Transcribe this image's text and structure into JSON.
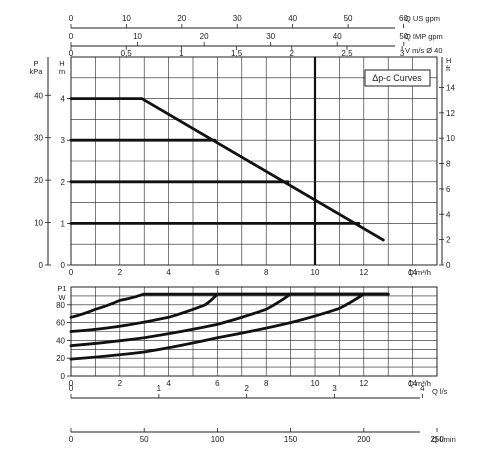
{
  "chart_data": [
    {
      "type": "line",
      "legend": "Δp-c Curves",
      "x_unit": "Q m³/h",
      "y_unit_left": [
        "P",
        "kPa"
      ],
      "y_unit_left2": [
        "H",
        "m"
      ],
      "y_unit_right": [
        "H",
        "ft"
      ],
      "xlim": [
        0,
        15
      ],
      "ylim_m": [
        0,
        5
      ],
      "x_ticks": [
        "0",
        "2",
        "4",
        "6",
        "8",
        "10",
        "12",
        "14"
      ],
      "y_ticks_kpa": [
        "0",
        "10",
        "20",
        "30",
        "40"
      ],
      "y_ticks_m": [
        "0",
        "1",
        "2",
        "3",
        "4"
      ],
      "y_ticks_ft": [
        "0",
        "2",
        "4",
        "6",
        "8",
        "10",
        "12",
        "14"
      ],
      "top_axes": [
        {
          "unit": "Q US gpm",
          "ticks": [
            "0",
            "10",
            "20",
            "30",
            "40",
            "50",
            "60"
          ]
        },
        {
          "unit": "Q IMP gpm",
          "ticks": [
            "0",
            "10",
            "20",
            "30",
            "40",
            "50"
          ]
        },
        {
          "unit": "V m/s Ø 40",
          "ticks": [
            "0",
            "0,5",
            "1",
            "1,5",
            "2",
            "2,5",
            "3"
          ]
        }
      ],
      "series": [
        {
          "x": [
            0,
            2.9,
            12.8
          ],
          "y": [
            4,
            4,
            0.6
          ]
        },
        {
          "x": [
            0,
            5.9
          ],
          "y": [
            3,
            3
          ]
        },
        {
          "x": [
            0,
            8.9
          ],
          "y": [
            2,
            2
          ]
        },
        {
          "x": [
            0,
            11.8
          ],
          "y": [
            1,
            1
          ]
        }
      ],
      "marker_line_x": 10
    },
    {
      "type": "line",
      "y_unit": [
        "P1",
        "W"
      ],
      "x_unit": "Q m³/h",
      "xlim": [
        0,
        15
      ],
      "ylim": [
        0,
        100
      ],
      "x_ticks": [
        "0",
        "2",
        "4",
        "6",
        "8",
        "10",
        "12",
        "14"
      ],
      "y_ticks": [
        "0",
        "20",
        "40",
        "60",
        "80"
      ],
      "bottom_axes": [
        {
          "unit": "Q l/s",
          "ticks": [
            "0",
            "1",
            "2",
            "3",
            "4"
          ]
        },
        {
          "unit": "Q l/min",
          "ticks": [
            "0",
            "50",
            "100",
            "150",
            "200",
            "250"
          ]
        }
      ],
      "series": [
        {
          "x": [
            0,
            1,
            2,
            3,
            13
          ],
          "y": [
            66,
            75,
            85,
            92,
            92
          ]
        },
        {
          "x": [
            0,
            2,
            4,
            5.5,
            6,
            13
          ],
          "y": [
            50,
            56,
            66,
            80,
            92,
            92
          ]
        },
        {
          "x": [
            0,
            3,
            6,
            8,
            9,
            13
          ],
          "y": [
            34,
            43,
            58,
            75,
            92,
            92
          ]
        },
        {
          "x": [
            0,
            3,
            6,
            9,
            11,
            12,
            13
          ],
          "y": [
            19,
            27,
            43,
            60,
            76,
            92,
            92
          ]
        }
      ]
    }
  ]
}
